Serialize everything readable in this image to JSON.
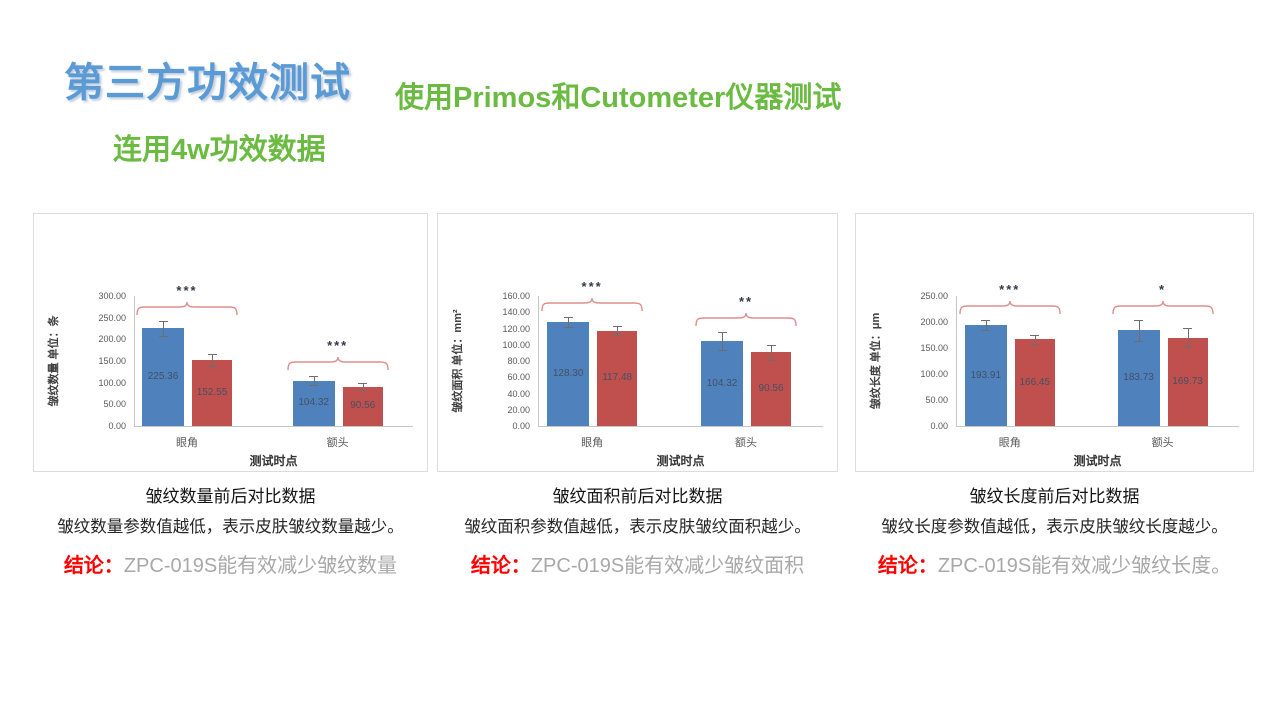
{
  "slide": {
    "title": "第三方功效测试",
    "subtitle_right": "使用Primos和Cutometer仪器测试",
    "subtitle_left": "连用4w功效数据"
  },
  "colors": {
    "title_blue": "#5B9BD5",
    "subtitle_green": "#6BBB43",
    "bar_blue": "#4F81BD",
    "bar_red": "#C0504D",
    "bracket_pink": "#E08D8B",
    "conclusion_red": "#FF0000",
    "conclusion_gray": "#A8A8A8"
  },
  "chart_data": [
    {
      "type": "bar",
      "title": "皱纹数量前后对比数据",
      "ylabel": "皱纹数量 单位：条",
      "xlabel": "测试时点",
      "categories": [
        "眼角",
        "额头"
      ],
      "series": [
        {
          "color": "#4F81BD",
          "values": [
            225.36,
            104.32
          ],
          "errors": [
            17,
            10
          ]
        },
        {
          "color": "#C0504D",
          "values": [
            152.55,
            90.56
          ],
          "errors": [
            13,
            8
          ]
        }
      ],
      "ylim": [
        0,
        300
      ],
      "ytick_step": 50,
      "significance": [
        "***",
        "***"
      ],
      "grid": false,
      "legend": "none"
    },
    {
      "type": "bar",
      "title": "皱纹面积前后对比数据",
      "ylabel": "皱纹面积 单位：mm²",
      "xlabel": "测试时点",
      "categories": [
        "眼角",
        "额头"
      ],
      "series": [
        {
          "color": "#4F81BD",
          "values": [
            128.3,
            104.32
          ],
          "errors": [
            6,
            11
          ]
        },
        {
          "color": "#C0504D",
          "values": [
            117.48,
            90.56
          ],
          "errors": [
            6,
            9
          ]
        }
      ],
      "ylim": [
        0,
        160
      ],
      "ytick_step": 20,
      "significance": [
        "***",
        "**"
      ],
      "grid": false,
      "legend": "none"
    },
    {
      "type": "bar",
      "title": "皱纹长度前后对比数据",
      "ylabel": "皱纹长度 单位：μm",
      "xlabel": "测试时点",
      "categories": [
        "眼角",
        "额头"
      ],
      "series": [
        {
          "color": "#4F81BD",
          "values": [
            193.91,
            183.73
          ],
          "errors": [
            10,
            21
          ]
        },
        {
          "color": "#C0504D",
          "values": [
            166.45,
            169.73
          ],
          "errors": [
            9,
            18
          ]
        }
      ],
      "ylim": [
        0,
        250
      ],
      "ytick_step": 50,
      "significance": [
        "***",
        "*"
      ],
      "grid": false,
      "legend": "none"
    }
  ],
  "sections": [
    {
      "caption": "皱纹数量前后对比数据",
      "description": "皱纹数量参数值越低，表示皮肤皱纹数量越少。",
      "conclusion_label": "结论：",
      "conclusion": "ZPC-019S能有效减少皱纹数量"
    },
    {
      "caption": "皱纹面积前后对比数据",
      "description": "皱纹面积参数值越低，表示皮肤皱纹面积越少。",
      "conclusion_label": "结论：",
      "conclusion": "ZPC-019S能有效减少皱纹面积"
    },
    {
      "caption": "皱纹长度前后对比数据",
      "description": "皱纹长度参数值越低，表示皮肤皱纹长度越少。",
      "conclusion_label": "结论：",
      "conclusion": "ZPC-019S能有效减少皱纹长度。"
    }
  ]
}
